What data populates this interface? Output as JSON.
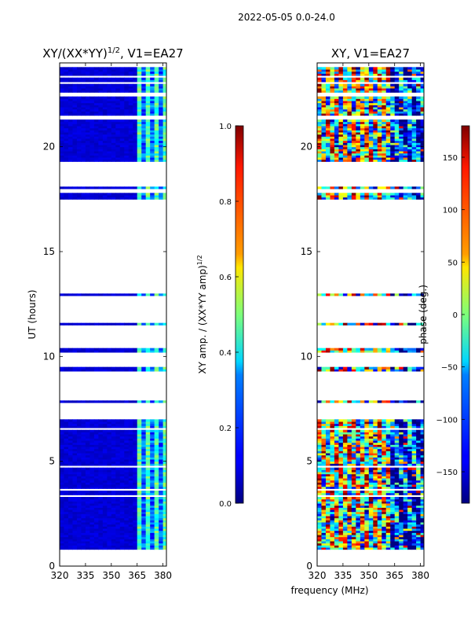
{
  "figure": {
    "suptitle": "2022-05-05 0.0-24.0",
    "shared_xlabel": "frequency (MHz)"
  },
  "chart_data": [
    {
      "type": "heatmap",
      "title": "XY/(XX*YY)^1/2, V1=EA27",
      "title_main": "XY/(XX*YY)",
      "title_sup": "1/2",
      "title_tail": ", V1=EA27",
      "xlabel": "frequency (MHz)",
      "ylabel": "UT (hours)",
      "xlim": [
        320,
        382
      ],
      "ylim": [
        0,
        24
      ],
      "xticks": [
        320,
        335,
        350,
        365,
        380
      ],
      "yticks": [
        0,
        5,
        10,
        15,
        20
      ],
      "colormap": "jet",
      "colorbar": {
        "label_main": "XY amp. / (XX*YY amp)",
        "label_sup": "1/2",
        "range": [
          0.0,
          1.0
        ],
        "ticks": [
          "0.0",
          "0.2",
          "0.4",
          "0.6",
          "0.8",
          "1.0"
        ]
      },
      "data_ranges_hours": [
        [
          0.8,
          3.3
        ],
        [
          3.4,
          3.6
        ],
        [
          3.7,
          4.7
        ],
        [
          4.8,
          6.5
        ],
        [
          6.6,
          7.0
        ],
        [
          7.8,
          7.9
        ],
        [
          9.3,
          9.5
        ],
        [
          10.2,
          10.4
        ],
        [
          11.5,
          11.6
        ],
        [
          12.9,
          13.0
        ],
        [
          17.5,
          17.8
        ],
        [
          18.0,
          18.1
        ],
        [
          19.3,
          21.3
        ],
        [
          21.5,
          22.4
        ],
        [
          22.6,
          23.0
        ],
        [
          23.1,
          23.3
        ],
        [
          23.4,
          23.8
        ]
      ],
      "high_value_freq_band_mhz": [
        363,
        380
      ]
    },
    {
      "type": "heatmap",
      "title": "XY, V1=EA27",
      "xlabel": "frequency (MHz)",
      "ylabel": "",
      "xlim": [
        320,
        382
      ],
      "ylim": [
        0,
        24
      ],
      "xticks": [
        320,
        335,
        350,
        365,
        380
      ],
      "yticks": [
        0,
        5,
        10,
        15,
        20
      ],
      "colormap": "jet",
      "colorbar": {
        "label": "phase (deg.)",
        "range": [
          -180,
          180
        ],
        "ticks": [
          "150",
          "100",
          "50",
          "0",
          "−50",
          "−100",
          "−150"
        ]
      }
    }
  ],
  "colors": {
    "axis": "#000000",
    "background": "#ffffff"
  }
}
